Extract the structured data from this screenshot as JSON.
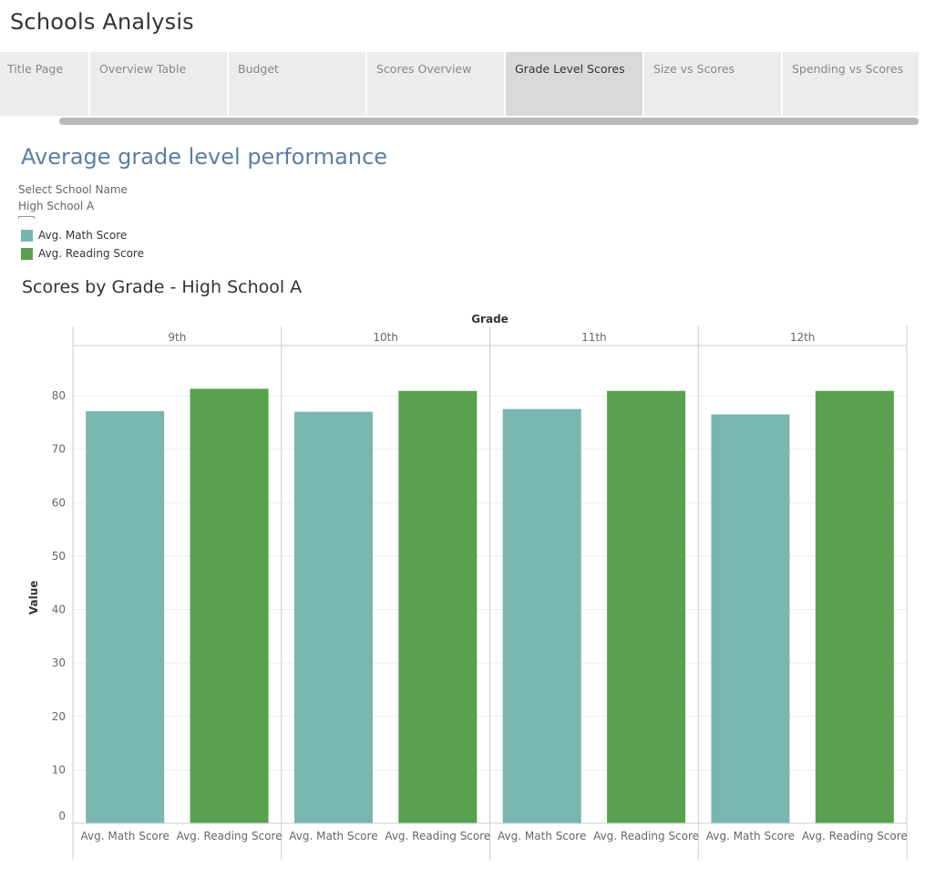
{
  "app": {
    "title": "Schools Analysis"
  },
  "tabs": [
    {
      "label": "Title Page"
    },
    {
      "label": "Overview Table"
    },
    {
      "label": "Budget"
    },
    {
      "label": "Scores Overview"
    },
    {
      "label": "Grade Level Scores",
      "active": true
    },
    {
      "label": "Size vs Scores"
    },
    {
      "label": "Spending vs Scores"
    }
  ],
  "dashboard": {
    "heading": "Average grade level performance",
    "filter": {
      "label": "Select School Name",
      "value": "High School A"
    },
    "legend": [
      {
        "label": "Avg. Math Score",
        "color": "#79b6b0"
      },
      {
        "label": "Avg. Reading Score",
        "color": "#59a14f"
      }
    ]
  },
  "chart_data": {
    "type": "bar",
    "title": "Scores by Grade - High School A",
    "xlabel": "Grade",
    "ylabel": "Value",
    "ylim": [
      0,
      84.5
    ],
    "yticks": [
      0,
      10,
      20,
      30,
      40,
      50,
      60,
      70,
      80
    ],
    "categories": [
      "9th",
      "10th",
      "11th",
      "12th"
    ],
    "measures": [
      "Avg. Math Score",
      "Avg. Reading Score"
    ],
    "series": [
      {
        "name": "Avg. Math Score",
        "color": "#79b6b0",
        "values": [
          77.1,
          77.0,
          77.5,
          76.5
        ]
      },
      {
        "name": "Avg. Reading Score",
        "color": "#59a14f",
        "values": [
          81.3,
          80.9,
          80.9,
          80.9
        ]
      }
    ],
    "grid": true,
    "legend": "top-left"
  }
}
